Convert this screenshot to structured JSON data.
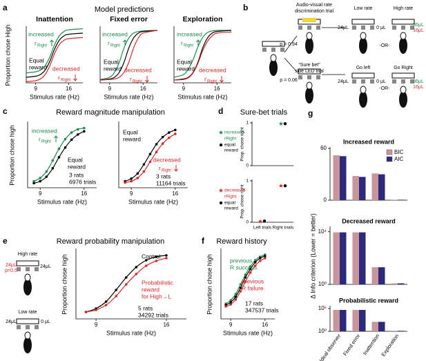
{
  "figure": {
    "panel_labels": [
      "a",
      "b",
      "c",
      "d",
      "e",
      "f",
      "g"
    ],
    "titles": [
      "Model predictions",
      "Reward magnitude manipulation",
      "Sure-bet trials",
      "Reward probability manipulation",
      "Reward history"
    ]
  },
  "diagram_b": {
    "texts": [
      {
        "text": "Audio-visual rate"
      },
      {
        "text": "discrimination trial"
      },
      {
        "text": "Low rate"
      },
      {
        "text": "High rate"
      },
      {
        "text": "p = 0.94"
      },
      {
        "text": "p = 0.06"
      },
      {
        "text": "“Sure bet”"
      },
      {
        "text": "side LED trial"
      },
      {
        "text": "Go left"
      },
      {
        "text": "Go Right"
      },
      {
        "text": "-OR-"
      },
      {
        "text": "-OR-"
      },
      {
        "text": "24μL"
      },
      {
        "text": "0 μL"
      },
      {
        "text": "36μL",
        "color": "#1e8a4c"
      },
      {
        "text": "16μL",
        "color": "#d62728"
      },
      {
        "text": "24μL"
      },
      {
        "text": "0 μL"
      },
      {
        "text": "36μL",
        "color": "#1e8a4c"
      },
      {
        "text": "16μL",
        "color": "#d62728"
      }
    ]
  },
  "diagram_e": {
    "texts": [
      {
        "text": "High rate"
      },
      {
        "text": "24μL",
        "color": "#d62728"
      },
      {
        "text": "p=0.5",
        "color": "#d62728"
      },
      {
        "text": "24μL"
      },
      {
        "text": "Low rate"
      },
      {
        "text": "24μL"
      },
      {
        "text": "0 μL"
      }
    ]
  },
  "chart_data": [
    {
      "type": "line",
      "title": "Inattention",
      "xlabel": "Stimulus rate (Hz)",
      "ylabel": "Proportion chose High",
      "xlim": [
        7,
        19
      ],
      "ylim": [
        0,
        1
      ],
      "xticks": [
        9,
        16
      ],
      "series": [
        {
          "color": "#1e8a4c",
          "x": [
            7,
            9,
            10,
            11,
            12,
            13,
            14,
            15,
            16,
            19
          ],
          "values": [
            0.18,
            0.2,
            0.23,
            0.31,
            0.47,
            0.69,
            0.85,
            0.93,
            0.96,
            0.98
          ]
        },
        {
          "color": "#000000",
          "x": [
            7,
            9,
            10,
            11,
            12,
            13,
            14,
            15,
            16,
            19
          ],
          "values": [
            0.1,
            0.12,
            0.15,
            0.23,
            0.39,
            0.61,
            0.77,
            0.85,
            0.88,
            0.9
          ]
        },
        {
          "color": "#d62728",
          "x": [
            7,
            9,
            10,
            11,
            12,
            13,
            14,
            15,
            16,
            19
          ],
          "values": [
            0.02,
            0.04,
            0.07,
            0.15,
            0.31,
            0.53,
            0.69,
            0.77,
            0.8,
            0.82
          ]
        }
      ],
      "annotations": [
        {
          "lines": [
            "increased"
          ],
          "color": "#1e8a4c"
        },
        {
          "lines": [
            "r"
          ],
          "sub": "Right",
          "color": "#1e8a4c",
          "arrow": "up"
        },
        {
          "lines": [
            "Equal",
            "reward"
          ],
          "color": "#000000"
        },
        {
          "lines": [
            "decreased"
          ],
          "color": "#d62728"
        },
        {
          "lines": [
            "r"
          ],
          "sub": "Right",
          "color": "#d62728",
          "arrow": "down"
        }
      ]
    },
    {
      "type": "line",
      "title": "Fixed error",
      "xlabel": "Stimulus rate (Hz)",
      "xlim": [
        7,
        19
      ],
      "ylim": [
        0,
        1
      ],
      "xticks": [
        9,
        16
      ],
      "series": [
        {
          "color": "#1e8a4c",
          "x": [
            7,
            9,
            10,
            11,
            12,
            13,
            14,
            15,
            16,
            19
          ],
          "values": [
            0.06,
            0.1,
            0.19,
            0.37,
            0.63,
            0.81,
            0.9,
            0.93,
            0.94,
            0.95
          ]
        },
        {
          "color": "#000000",
          "x": [
            7,
            9,
            10,
            11,
            12,
            13,
            14,
            15,
            16,
            19
          ],
          "values": [
            0.05,
            0.07,
            0.1,
            0.19,
            0.37,
            0.63,
            0.81,
            0.9,
            0.93,
            0.95
          ]
        },
        {
          "color": "#d62728",
          "x": [
            7,
            9,
            10,
            11,
            12,
            13,
            14,
            15,
            16,
            19
          ],
          "values": [
            0.05,
            0.06,
            0.07,
            0.1,
            0.19,
            0.37,
            0.63,
            0.81,
            0.9,
            0.95
          ]
        }
      ],
      "annotations": [
        {
          "lines": [
            "increased"
          ],
          "color": "#1e8a4c"
        },
        {
          "lines": [
            "r"
          ],
          "sub": "Right",
          "color": "#1e8a4c",
          "arrow": "up"
        },
        {
          "lines": [
            "Equal",
            "reward"
          ],
          "color": "#000000"
        },
        {
          "lines": [
            "decreased"
          ],
          "color": "#d62728"
        },
        {
          "lines": [
            "r"
          ],
          "sub": "Right",
          "color": "#d62728",
          "arrow": "down"
        }
      ]
    },
    {
      "type": "line",
      "title": "Exploration",
      "xlabel": "Stimulus rate (Hz)",
      "xlim": [
        7,
        19
      ],
      "ylim": [
        0,
        1
      ],
      "xticks": [
        9,
        16
      ],
      "series": [
        {
          "color": "#1e8a4c",
          "x": [
            7,
            9,
            10,
            11,
            12,
            13,
            14,
            15,
            16,
            19
          ],
          "values": [
            0.1,
            0.15,
            0.25,
            0.42,
            0.65,
            0.82,
            0.91,
            0.94,
            0.95,
            0.95
          ]
        },
        {
          "color": "#000000",
          "x": [
            7,
            9,
            10,
            11,
            12,
            13,
            14,
            15,
            16,
            19
          ],
          "values": [
            0.05,
            0.07,
            0.1,
            0.19,
            0.37,
            0.63,
            0.81,
            0.9,
            0.93,
            0.95
          ]
        },
        {
          "color": "#d62728",
          "x": [
            7,
            9,
            10,
            11,
            12,
            13,
            14,
            15,
            16,
            19
          ],
          "values": [
            0.05,
            0.06,
            0.09,
            0.18,
            0.35,
            0.58,
            0.75,
            0.85,
            0.9,
            0.92
          ]
        }
      ],
      "annotations": [
        {
          "lines": [
            "increased"
          ],
          "color": "#1e8a4c"
        },
        {
          "lines": [
            "r"
          ],
          "sub": "Right",
          "color": "#1e8a4c",
          "arrow": "up"
        },
        {
          "lines": [
            "Equal",
            "reward"
          ],
          "color": "#000000"
        },
        {
          "lines": [
            "decreased"
          ],
          "color": "#d62728"
        },
        {
          "lines": [
            "r"
          ],
          "sub": "Right",
          "color": "#d62728",
          "arrow": "down"
        }
      ]
    },
    {
      "type": "line",
      "xlabel": "Stimulus rate (Hz)",
      "ylabel": "Proportion chose high",
      "xlim": [
        7,
        18
      ],
      "ylim": [
        0,
        1
      ],
      "xticks": [
        9,
        16
      ],
      "series": [
        {
          "color": "#1e8a4c",
          "markers": true,
          "x": [
            8,
            9,
            10,
            11,
            12,
            13,
            14,
            15,
            16
          ],
          "values": [
            0.1,
            0.15,
            0.25,
            0.42,
            0.6,
            0.75,
            0.85,
            0.9,
            0.92
          ]
        },
        {
          "color": "#000000",
          "markers": true,
          "x": [
            8,
            9,
            10,
            11,
            12,
            13,
            14,
            15,
            16
          ],
          "values": [
            0.07,
            0.1,
            0.17,
            0.3,
            0.47,
            0.62,
            0.74,
            0.82,
            0.87
          ]
        }
      ],
      "annotations": [
        {
          "lines": [
            "increased"
          ],
          "color": "#1e8a4c"
        },
        {
          "lines": [
            "r"
          ],
          "sub": "Right",
          "color": "#1e8a4c",
          "arrow": "up"
        },
        {
          "lines": [
            "Equal",
            "reward"
          ],
          "color": "#000000"
        },
        {
          "lines": [
            "3 rats",
            "6976 trials"
          ],
          "color": "#000000"
        }
      ]
    },
    {
      "type": "line",
      "xlabel": "Stimulus rate (Hz)",
      "xlim": [
        7,
        18
      ],
      "ylim": [
        0,
        1
      ],
      "xticks": [
        9,
        16
      ],
      "series": [
        {
          "color": "#000000",
          "markers": true,
          "x": [
            8,
            9,
            10,
            11,
            12,
            13,
            14,
            15,
            16
          ],
          "values": [
            0.1,
            0.14,
            0.22,
            0.36,
            0.52,
            0.67,
            0.78,
            0.85,
            0.89
          ]
        },
        {
          "color": "#d62728",
          "markers": true,
          "x": [
            8,
            9,
            10,
            11,
            12,
            13,
            14,
            15,
            16
          ],
          "values": [
            0.08,
            0.1,
            0.15,
            0.25,
            0.4,
            0.55,
            0.68,
            0.77,
            0.83
          ]
        }
      ],
      "annotations": [
        {
          "lines": [
            "Equal",
            "reward"
          ],
          "color": "#000000"
        },
        {
          "lines": [
            "decreased"
          ],
          "color": "#d62728"
        },
        {
          "lines": [
            "r"
          ],
          "sub": "Right",
          "color": "#d62728",
          "arrow": "down"
        },
        {
          "lines": [
            "3 rats",
            "11164 trials"
          ],
          "color": "#000000"
        }
      ]
    },
    {
      "type": "scatter",
      "ylabel": "Prop. chose right",
      "ylim": [
        0,
        1
      ],
      "yticks": [
        0,
        1
      ],
      "series": [
        {
          "color": "#1e8a4c",
          "marker": "star",
          "values": [
            null,
            0.98
          ]
        },
        {
          "color": "#000000",
          "marker": "circle",
          "values": [
            null,
            0.98
          ]
        }
      ],
      "annotations": [
        {
          "lines": [
            "increased"
          ],
          "color": "#1e8a4c",
          "marker": "star"
        },
        {
          "lines": [
            "rRight"
          ],
          "color": "#1e8a4c"
        },
        {
          "lines": [
            "equal",
            "reward"
          ],
          "color": "#000000",
          "marker": "circle"
        }
      ]
    },
    {
      "type": "scatter",
      "ylabel": "Prop. chose right",
      "ylim": [
        0,
        1
      ],
      "yticks": [
        0,
        1
      ],
      "categories": [
        "Left trials",
        "Right trials"
      ],
      "series": [
        {
          "color": "#d62728",
          "marker": "star",
          "values": [
            0.02,
            0.88
          ]
        },
        {
          "color": "#000000",
          "marker": "circle",
          "values": [
            0.03,
            0.88
          ]
        }
      ],
      "annotations": [
        {
          "lines": [
            "decreased"
          ],
          "color": "#d62728",
          "marker": "star"
        },
        {
          "lines": [
            "rRight"
          ],
          "color": "#d62728"
        },
        {
          "lines": [
            "equal",
            "reward"
          ],
          "color": "#000000",
          "marker": "circle"
        }
      ]
    },
    {
      "type": "line",
      "xlabel": "Stimulus rate (Hz)",
      "ylabel": "Proportion chose high",
      "xlim": [
        7,
        18
      ],
      "ylim": [
        0,
        1
      ],
      "xticks": [
        9,
        16
      ],
      "series": [
        {
          "color": "#000000",
          "markers": true,
          "x": [
            8,
            9,
            10,
            11,
            12,
            13,
            14,
            15,
            16
          ],
          "values": [
            0.1,
            0.15,
            0.25,
            0.42,
            0.6,
            0.75,
            0.85,
            0.9,
            0.92
          ]
        },
        {
          "color": "#d62728",
          "markers": true,
          "x": [
            8,
            9,
            10,
            11,
            12,
            13,
            14,
            15,
            16
          ],
          "values": [
            0.1,
            0.13,
            0.2,
            0.33,
            0.5,
            0.65,
            0.77,
            0.84,
            0.88
          ]
        }
      ],
      "annotations": [
        {
          "lines": [
            "Control"
          ],
          "color": "#000000"
        },
        {
          "lines": [
            "Probabilistic",
            "reward",
            "for High→L"
          ],
          "color": "#d62728"
        },
        {
          "lines": [
            "5 rats",
            "34292 trials"
          ],
          "color": "#000000"
        }
      ]
    },
    {
      "type": "line",
      "xlabel": "Stimulus rate (Hz)",
      "ylabel": "Proportion chose high",
      "xlim": [
        7,
        18
      ],
      "ylim": [
        0,
        1
      ],
      "xticks": [
        9,
        16
      ],
      "series": [
        {
          "color": "#1e8a4c",
          "markers": true,
          "x": [
            8,
            9,
            10,
            11,
            12,
            13,
            14,
            15,
            16
          ],
          "values": [
            0.22,
            0.27,
            0.36,
            0.5,
            0.64,
            0.76,
            0.85,
            0.9,
            0.93
          ]
        },
        {
          "color": "#000000",
          "markers": true,
          "x": [
            8,
            9,
            10,
            11,
            12,
            13,
            14,
            15,
            16
          ],
          "values": [
            0.2,
            0.24,
            0.32,
            0.45,
            0.6,
            0.72,
            0.82,
            0.88,
            0.91
          ]
        },
        {
          "color": "#d62728",
          "markers": true,
          "x": [
            8,
            9,
            10,
            11,
            12,
            13,
            14,
            15,
            16
          ],
          "values": [
            0.18,
            0.21,
            0.28,
            0.4,
            0.54,
            0.67,
            0.77,
            0.84,
            0.88
          ]
        }
      ],
      "annotations": [
        {
          "lines": [
            "previous",
            "R success"
          ],
          "color": "#1e8a4c"
        },
        {
          "lines": [
            "previous",
            "R failure"
          ],
          "color": "#d62728"
        },
        {
          "lines": [
            "17 rats",
            "347537 trials"
          ],
          "color": "#000000"
        }
      ]
    },
    {
      "type": "bar",
      "title": "Increased reward",
      "ylim": [
        0,
        60
      ],
      "yticks": [
        0,
        60
      ],
      "series": [
        {
          "name": "BIC",
          "color": "#c8959a",
          "values": [
            52,
            28,
            31,
            0.5
          ]
        },
        {
          "name": "AIC",
          "color": "#2b2a7c",
          "values": [
            51,
            27,
            30,
            0.5
          ]
        }
      ]
    },
    {
      "type": "bar",
      "title": "Decreased reward",
      "ylabel": "Δ Info criterion (Lower = better)",
      "log": true,
      "ylim": [
        1,
        20000
      ],
      "yticks": [
        {
          "value": 1,
          "label": "10⁰"
        },
        {
          "value": 10000,
          "label": "10⁴"
        }
      ],
      "series": [
        {
          "color": "#c8959a",
          "values": [
            9000,
            9000,
            20,
            1.2
          ]
        },
        {
          "color": "#2b2a7c",
          "values": [
            9000,
            9000,
            20,
            1.2
          ]
        }
      ]
    },
    {
      "type": "bar",
      "title": "Probabilistic reward",
      "log": true,
      "ylim": [
        1,
        200000
      ],
      "yticks": [
        {
          "value": 1,
          "label": "10⁰"
        },
        {
          "value": 100000,
          "label": "10⁵"
        }
      ],
      "categories": [
        "Ideal observer",
        "Fixed error",
        "Inattention",
        "Exploration"
      ],
      "series": [
        {
          "color": "#c8959a",
          "values": [
            50000,
            50000,
            120,
            1.3
          ]
        },
        {
          "color": "#2b2a7c",
          "values": [
            50000,
            50000,
            120,
            1.3
          ]
        }
      ]
    }
  ]
}
